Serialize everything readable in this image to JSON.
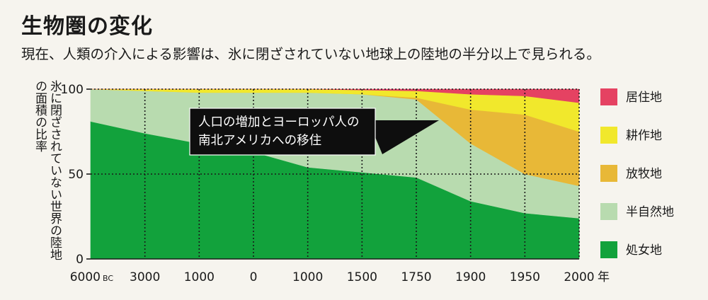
{
  "title": "生物圏の変化",
  "subtitle": "現在、人類の介入による影響は、氷に閉ざされていない地球上の陸地の半分以上で見られる。",
  "chart_data": {
    "type": "area",
    "stacked": true,
    "title": "生物圏の変化",
    "ylabel": "氷に閉ざされていない世界の陸地の面積の比率",
    "xlabel": "",
    "x_unit_label": "年",
    "bc_marker": "BC",
    "ylim": [
      0,
      100
    ],
    "yticks": [
      "0",
      "50",
      "100"
    ],
    "categories": [
      "6000",
      "3000",
      "1000",
      "0",
      "1000",
      "1500",
      "1750",
      "1900",
      "1950",
      "2000"
    ],
    "series": [
      {
        "name": "処女地",
        "color": "#12a23c",
        "values": [
          81,
          74,
          68,
          63,
          54,
          51,
          48,
          34,
          27,
          24
        ]
      },
      {
        "name": "半自然地",
        "color": "#b8dbaf",
        "values": [
          19,
          25,
          30,
          35,
          44,
          46,
          46,
          34,
          23,
          19
        ]
      },
      {
        "name": "放牧地",
        "color": "#e8b837",
        "values": [
          0,
          0,
          0,
          0,
          0,
          0,
          1,
          20,
          35,
          32
        ]
      },
      {
        "name": "耕作地",
        "color": "#f1e82c",
        "values": [
          0,
          1,
          2,
          2,
          2,
          2.5,
          4,
          9,
          11,
          17
        ]
      },
      {
        "name": "居住地",
        "color": "#e54262",
        "values": [
          0,
          0,
          0,
          0,
          0,
          0.5,
          1,
          3,
          4,
          8
        ]
      }
    ],
    "grid": true,
    "legend_position": "right",
    "annotation": "人口の増加とヨーロッパ人の南北アメリカへの移住"
  }
}
